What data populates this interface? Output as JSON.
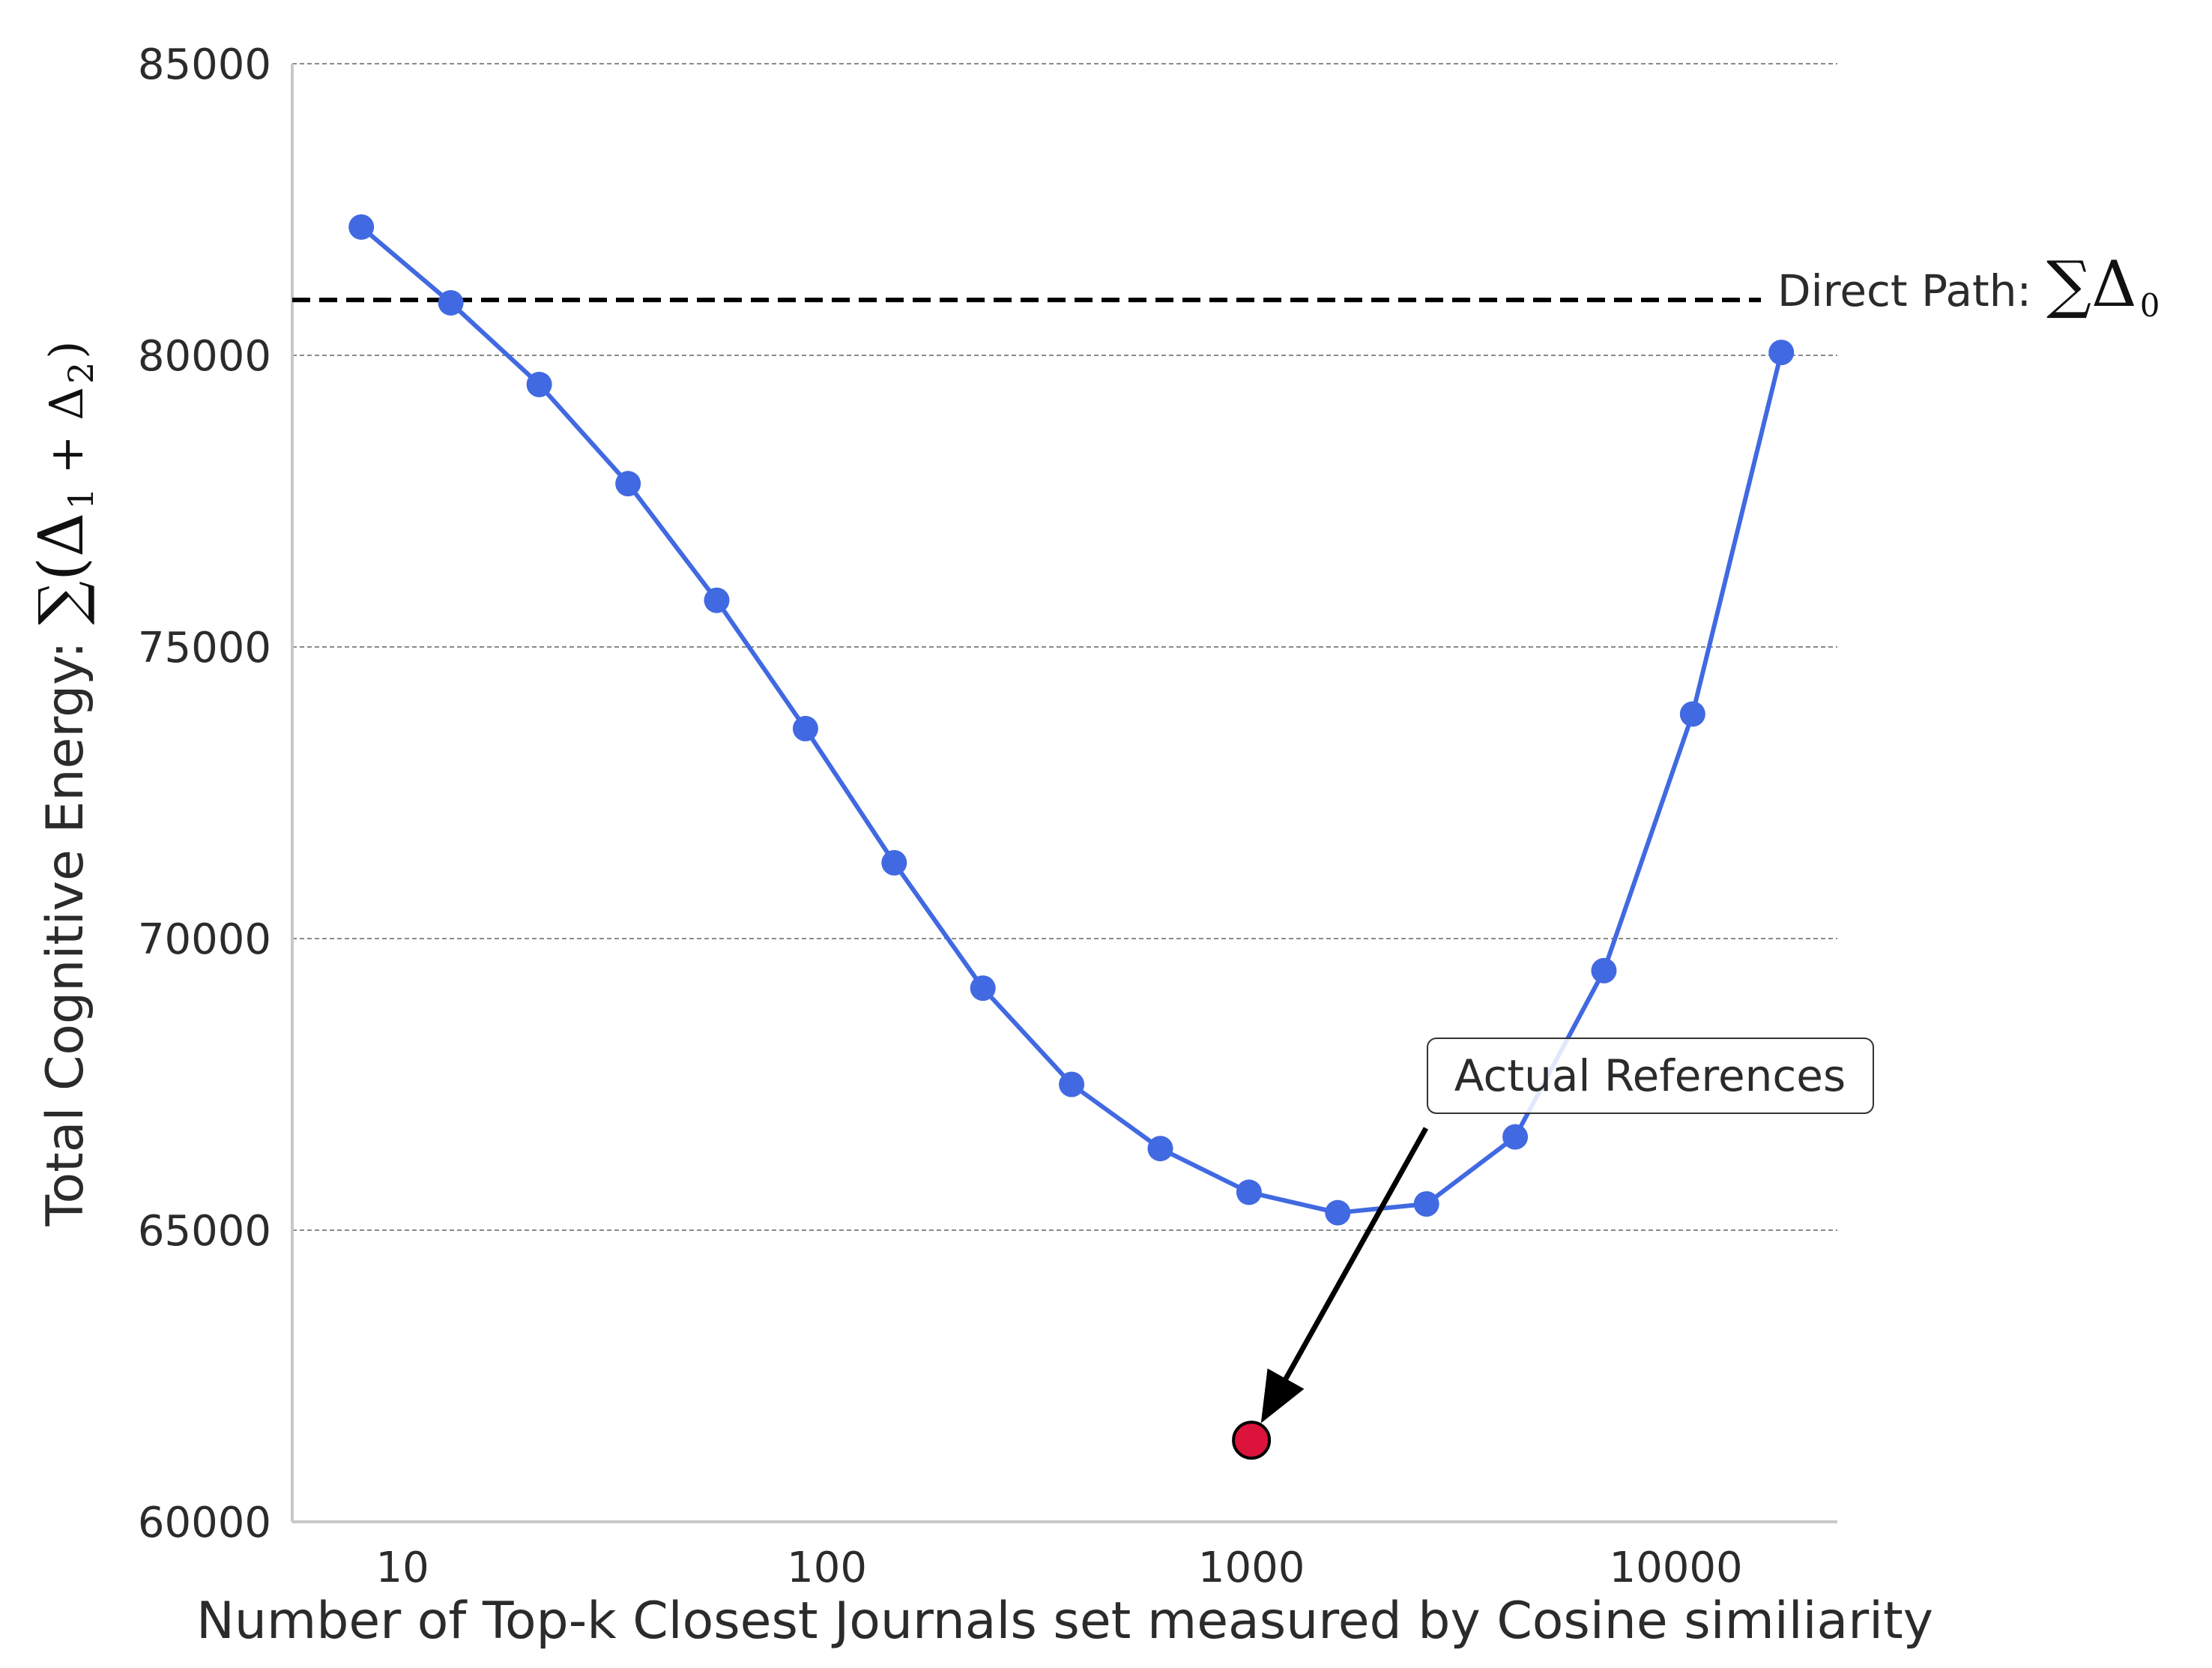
{
  "chart_data": {
    "type": "line",
    "xlabel": "Number of Top-k Closest Journals set measured by Cosine similiarity",
    "ylabel": "Total Cognitive Energy: ∑(Δ₁ + Δ₂)",
    "ylabel_prefix": "Total Cognitive Energy:",
    "ylabel_math": "∑(Δ",
    "ylabel_sub1": "1",
    "ylabel_plus": "+ Δ",
    "ylabel_sub2": "2",
    "ylabel_close": ")",
    "xscale": "log",
    "xlim": [
      5.5,
      24000
    ],
    "ylim": [
      60000,
      85000
    ],
    "grid": "horizontal dashed",
    "x_ticks": [
      10,
      100,
      1000,
      10000
    ],
    "x_tick_labels": [
      "10",
      "100",
      "1000",
      "10000"
    ],
    "y_ticks": [
      60000,
      65000,
      70000,
      75000,
      80000,
      85000
    ],
    "y_tick_labels": [
      "60000",
      "65000",
      "70000",
      "75000",
      "80000",
      "85000"
    ],
    "series": [
      {
        "color": "#4169e1",
        "marker": "circle",
        "x": [
          8,
          13,
          21,
          34,
          55,
          89,
          144,
          233,
          377,
          610,
          987,
          1597,
          2584,
          4181,
          6765,
          10946,
          17711
        ],
        "y": [
          82200,
          80900,
          79500,
          77800,
          75800,
          73600,
          71300,
          69150,
          67500,
          66400,
          65650,
          65300,
          65450,
          66600,
          69450,
          73850,
          80050
        ]
      }
    ],
    "reference_line": {
      "y": 80950,
      "style": "dashed",
      "color": "#000000",
      "label_prefix": "Direct Path:",
      "label_math": "∑Δ",
      "label_sub": "0"
    },
    "highlight_point": {
      "x": 1000,
      "y": 61400,
      "color": "#dc143c",
      "annotation": "Actual References"
    }
  }
}
